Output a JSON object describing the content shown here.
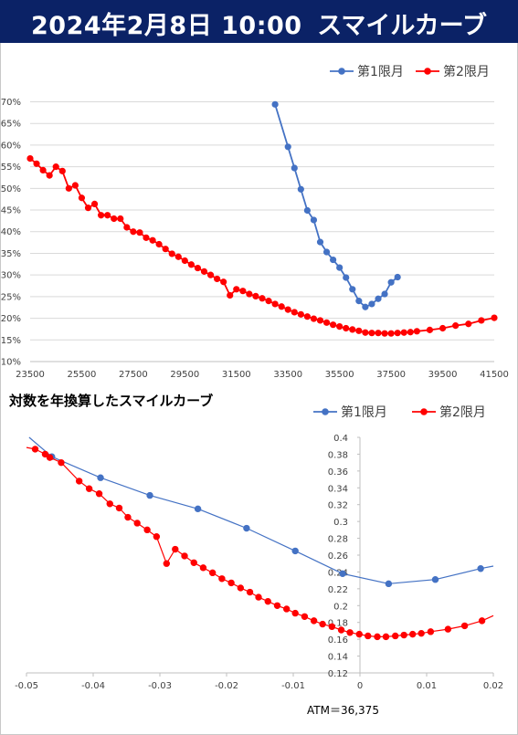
{
  "header": {
    "date": "2024年2月8日 10:00",
    "title": "スマイルカーブ"
  },
  "colors": {
    "header_bg": "#0b2266",
    "series1": "#4472c4",
    "series2": "#ff0000"
  },
  "chart2_heading": "対数を年換算したスマイルカーブ",
  "atm_label": "ATM＝36,375",
  "chart_data": [
    {
      "type": "line",
      "title": "",
      "xlabel": "",
      "ylabel": "",
      "xlim": [
        23500,
        41500
      ],
      "ylim": [
        0.1,
        0.72
      ],
      "x_ticks": [
        "23500",
        "25500",
        "27500",
        "29500",
        "31500",
        "33500",
        "35500",
        "37500",
        "39500",
        "41500"
      ],
      "y_ticks": [
        "10%",
        "15%",
        "20%",
        "25%",
        "30%",
        "35%",
        "40%",
        "45%",
        "50%",
        "55%",
        "60%",
        "65%",
        "70%"
      ],
      "legend_position": "top-right",
      "grid": "horizontal",
      "series": [
        {
          "name": "第1限月",
          "x": [
            33000,
            33500,
            33750,
            34000,
            34250,
            34500,
            34750,
            35000,
            35250,
            35500,
            35750,
            36000,
            36250,
            36500,
            36750,
            37000,
            37250,
            37500,
            37750
          ],
          "y": [
            0.694,
            0.596,
            0.547,
            0.498,
            0.449,
            0.427,
            0.376,
            0.353,
            0.335,
            0.317,
            0.294,
            0.267,
            0.24,
            0.226,
            0.233,
            0.245,
            0.256,
            0.283,
            0.295
          ]
        },
        {
          "name": "第2限月",
          "x": [
            23500,
            23750,
            24000,
            24250,
            24500,
            24750,
            25000,
            25250,
            25500,
            25750,
            26000,
            26250,
            26500,
            26750,
            27000,
            27250,
            27500,
            27750,
            28000,
            28250,
            28500,
            28750,
            29000,
            29250,
            29500,
            29750,
            30000,
            30250,
            30500,
            30750,
            31000,
            31250,
            31500,
            31750,
            32000,
            32250,
            32500,
            32750,
            33000,
            33250,
            33500,
            33750,
            34000,
            34250,
            34500,
            34750,
            35000,
            35250,
            35500,
            35750,
            36000,
            36250,
            36500,
            36750,
            37000,
            37250,
            37500,
            37750,
            38000,
            38250,
            38500,
            39000,
            39500,
            40000,
            40500,
            41000,
            41500
          ],
          "y": [
            0.569,
            0.557,
            0.542,
            0.53,
            0.55,
            0.54,
            0.5,
            0.507,
            0.478,
            0.455,
            0.464,
            0.438,
            0.438,
            0.43,
            0.43,
            0.41,
            0.4,
            0.398,
            0.386,
            0.38,
            0.371,
            0.36,
            0.349,
            0.342,
            0.333,
            0.324,
            0.316,
            0.308,
            0.3,
            0.291,
            0.284,
            0.253,
            0.267,
            0.263,
            0.256,
            0.251,
            0.246,
            0.24,
            0.233,
            0.227,
            0.22,
            0.214,
            0.209,
            0.204,
            0.199,
            0.195,
            0.19,
            0.185,
            0.181,
            0.177,
            0.174,
            0.171,
            0.167,
            0.166,
            0.166,
            0.165,
            0.165,
            0.166,
            0.167,
            0.168,
            0.17,
            0.173,
            0.177,
            0.183,
            0.187,
            0.195,
            0.201
          ]
        }
      ]
    },
    {
      "type": "scatter",
      "title": "対数を年換算したスマイルカーブ",
      "xlabel": "",
      "ylabel": "",
      "xlim": [
        -0.05,
        0.02
      ],
      "ylim": [
        0.12,
        0.4
      ],
      "x_ticks": [
        "-0.05",
        "-0.04",
        "-0.03",
        "-0.02",
        "-0.01",
        "0",
        "0.01",
        "0.02"
      ],
      "y_ticks": [
        "0.12",
        "0.14",
        "0.16",
        "0.18",
        "0.2",
        "0.22",
        "0.24",
        "0.26",
        "0.28",
        "0.3",
        "0.32",
        "0.34",
        "0.36",
        "0.38",
        "0.4"
      ],
      "legend_position": "top-right",
      "grid": "none",
      "series": [
        {
          "name": "第1限月",
          "x": [
            -0.0462,
            -0.0389,
            -0.0315,
            -0.0243,
            -0.017,
            -0.0097,
            -0.0026,
            0.0043,
            0.0113,
            0.0181
          ],
          "y": [
            0.377,
            0.352,
            0.331,
            0.315,
            0.292,
            0.265,
            0.238,
            0.226,
            0.231,
            0.244
          ],
          "line_x": [
            -0.0496,
            0.02
          ],
          "line_y": [
            0.4,
            0.247
          ]
        },
        {
          "name": "第2限月",
          "x": [
            -0.0487,
            -0.0472,
            -0.0465,
            -0.0448,
            -0.0421,
            -0.0406,
            -0.0391,
            -0.0375,
            -0.0361,
            -0.0348,
            -0.0334,
            -0.0319,
            -0.0305,
            -0.029,
            -0.0277,
            -0.0263,
            -0.0249,
            -0.0235,
            -0.0221,
            -0.0207,
            -0.0193,
            -0.0179,
            -0.0165,
            -0.0152,
            -0.0138,
            -0.0124,
            -0.011,
            -0.0097,
            -0.0083,
            -0.0069,
            -0.0056,
            -0.0042,
            -0.0028,
            -0.0015,
            -0.0001,
            0.0012,
            0.0026,
            0.0039,
            0.0053,
            0.0066,
            0.0079,
            0.0092,
            0.0106,
            0.0132,
            0.0157,
            0.0183
          ],
          "y": [
            0.386,
            0.38,
            0.376,
            0.37,
            0.348,
            0.339,
            0.333,
            0.321,
            0.316,
            0.305,
            0.298,
            0.29,
            0.282,
            0.25,
            0.267,
            0.259,
            0.251,
            0.245,
            0.239,
            0.232,
            0.227,
            0.221,
            0.216,
            0.21,
            0.205,
            0.2,
            0.196,
            0.191,
            0.187,
            0.182,
            0.178,
            0.175,
            0.171,
            0.168,
            0.166,
            0.164,
            0.163,
            0.163,
            0.164,
            0.165,
            0.166,
            0.167,
            0.169,
            0.172,
            0.176,
            0.182
          ],
          "line_x": [
            -0.05,
            0.02
          ],
          "line_y": [
            0.388,
            0.188
          ]
        }
      ]
    }
  ]
}
